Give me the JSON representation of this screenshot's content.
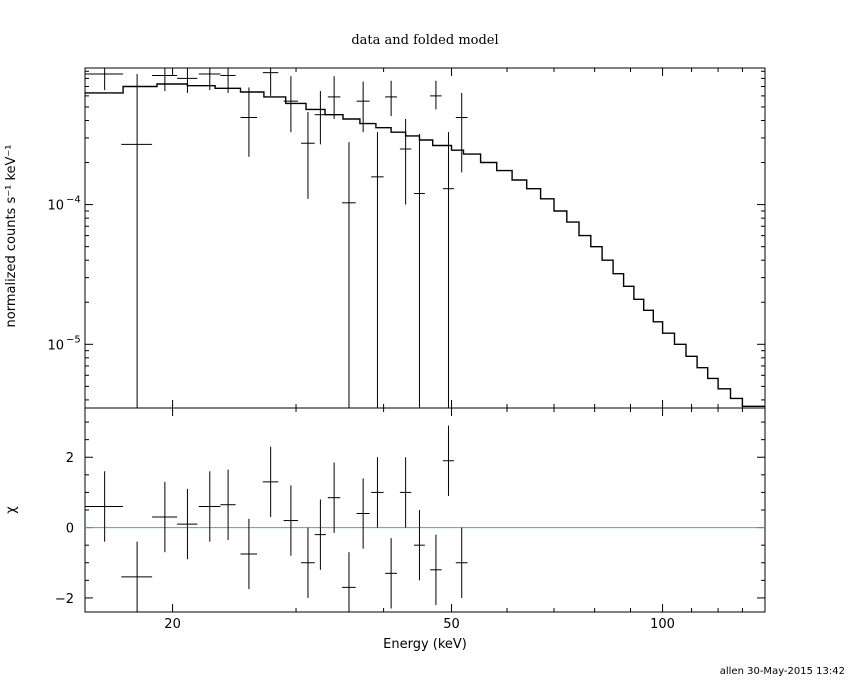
{
  "chart_data": [
    {
      "type": "scatter",
      "title": "data and folded model",
      "xlabel": "",
      "ylabel": "normalized counts s⁻¹ keV⁻¹",
      "xscale": "log",
      "yscale": "log",
      "xlim": [
        15,
        140
      ],
      "ylim": [
        3.5e-06,
        0.00095
      ],
      "ytick_labels": [
        {
          "value": 0.0001,
          "base": "10",
          "exp": "−4"
        },
        {
          "value": 1e-05,
          "base": "10",
          "exp": "−5"
        }
      ],
      "series": [
        {
          "kind": "data",
          "points": [
            {
              "x": 16.0,
              "xerr": [
                1.0,
                1.0
              ],
              "y": 0.00086,
              "ylo": 0.00066,
              "yhi": 0.00095
            },
            {
              "x": 17.8,
              "xerr": [
                0.9,
                0.9
              ],
              "y": 0.00027,
              "ylo": 3.5e-06,
              "yhi": 0.00086
            },
            {
              "x": 19.5,
              "xerr": [
                0.8,
                0.8
              ],
              "y": 0.00084,
              "ylo": 0.00065,
              "yhi": 0.00095
            },
            {
              "x": 21.0,
              "xerr": [
                0.7,
                0.7
              ],
              "y": 0.0008,
              "ylo": 0.00063,
              "yhi": 0.00095
            },
            {
              "x": 22.6,
              "xerr": [
                0.8,
                0.8
              ],
              "y": 0.00086,
              "ylo": 0.00066,
              "yhi": 0.00095
            },
            {
              "x": 24.0,
              "xerr": [
                0.6,
                0.6
              ],
              "y": 0.00084,
              "ylo": 0.00063,
              "yhi": 0.00095
            },
            {
              "x": 25.7,
              "xerr": [
                0.7,
                0.7
              ],
              "y": 0.00042,
              "ylo": 0.00022,
              "yhi": 0.00069
            },
            {
              "x": 27.6,
              "xerr": [
                0.7,
                0.7
              ],
              "y": 0.00088,
              "ylo": 0.0006,
              "yhi": 0.00095
            },
            {
              "x": 29.5,
              "xerr": [
                0.7,
                0.7
              ],
              "y": 0.00055,
              "ylo": 0.00033,
              "yhi": 0.00083
            },
            {
              "x": 31.2,
              "xerr": [
                0.7,
                0.7
              ],
              "y": 0.000275,
              "ylo": 0.00011,
              "yhi": 0.00046
            },
            {
              "x": 32.5,
              "xerr": [
                0.6,
                0.6
              ],
              "y": 0.00044,
              "ylo": 0.00027,
              "yhi": 0.00065
            },
            {
              "x": 34.0,
              "xerr": [
                0.7,
                0.7
              ],
              "y": 0.00059,
              "ylo": 0.00041,
              "yhi": 0.00083
            },
            {
              "x": 35.7,
              "xerr": [
                0.8,
                0.8
              ],
              "y": 0.000103,
              "ylo": 3.5e-06,
              "yhi": 0.00028
            },
            {
              "x": 37.4,
              "xerr": [
                0.8,
                0.8
              ],
              "y": 0.00055,
              "ylo": 0.00033,
              "yhi": 0.00076
            },
            {
              "x": 39.2,
              "xerr": [
                0.8,
                0.8
              ],
              "y": 0.000158,
              "ylo": 3.5e-06,
              "yhi": 0.00033
            },
            {
              "x": 41.0,
              "xerr": [
                0.8,
                0.8
              ],
              "y": 0.00059,
              "ylo": 0.00043,
              "yhi": 0.00077
            },
            {
              "x": 43.0,
              "xerr": [
                0.8,
                0.8
              ],
              "y": 0.00025,
              "ylo": 0.0001,
              "yhi": 0.00041
            },
            {
              "x": 45.0,
              "xerr": [
                0.8,
                0.8
              ],
              "y": 0.00012,
              "ylo": 3.5e-06,
              "yhi": 0.00032
            },
            {
              "x": 47.5,
              "xerr": [
                0.9,
                0.9
              ],
              "y": 0.0006,
              "ylo": 0.00048,
              "yhi": 0.00077
            },
            {
              "x": 49.5,
              "xerr": [
                0.9,
                0.9
              ],
              "y": 0.00013,
              "ylo": 3.5e-06,
              "yhi": 0.00033
            },
            {
              "x": 51.7,
              "xerr": [
                1.0,
                1.0
              ],
              "y": 0.00042,
              "ylo": 0.00017,
              "yhi": 0.00063
            }
          ]
        },
        {
          "kind": "model",
          "points": [
            [
              15,
              0.00063
            ],
            [
              17,
              0.0007
            ],
            [
              19,
              0.00073
            ],
            [
              21,
              0.00071
            ],
            [
              23,
              0.00068
            ],
            [
              25,
              0.00064
            ],
            [
              27,
              0.00059
            ],
            [
              29,
              0.00053
            ],
            [
              31,
              0.00048
            ],
            [
              33,
              0.00044
            ],
            [
              35,
              0.00041
            ],
            [
              37,
              0.00038
            ],
            [
              39,
              0.000355
            ],
            [
              41,
              0.00033
            ],
            [
              43,
              0.00031
            ],
            [
              45,
              0.00029
            ],
            [
              47,
              0.000265
            ],
            [
              50,
              0.000245
            ],
            [
              52,
              0.00023
            ],
            [
              55,
              0.0002
            ],
            [
              58,
              0.000175
            ],
            [
              61,
              0.00015
            ],
            [
              64,
              0.00013
            ],
            [
              67,
              0.00011
            ],
            [
              70,
              9e-05
            ],
            [
              73,
              7.5e-05
            ],
            [
              76,
              6e-05
            ],
            [
              79,
              5e-05
            ],
            [
              82,
              4e-05
            ],
            [
              85,
              3.2e-05
            ],
            [
              88,
              2.6e-05
            ],
            [
              91,
              2.1e-05
            ],
            [
              94,
              1.75e-05
            ],
            [
              97,
              1.45e-05
            ],
            [
              100,
              1.2e-05
            ],
            [
              104,
              1e-05
            ],
            [
              108,
              8.2e-06
            ],
            [
              112,
              6.8e-06
            ],
            [
              116,
              5.7e-06
            ],
            [
              120,
              4.8e-06
            ],
            [
              125,
              4.1e-06
            ],
            [
              130,
              3.6e-06
            ]
          ]
        }
      ]
    },
    {
      "type": "scatter",
      "xlabel": "Energy (keV)",
      "ylabel": "χ",
      "xscale": "log",
      "xlim": [
        15,
        140
      ],
      "ylim": [
        -2.4,
        3.4
      ],
      "xticks": [
        20,
        50,
        100
      ],
      "yticks": [
        -2,
        0,
        2
      ],
      "series": [
        {
          "kind": "residuals",
          "points": [
            {
              "x": 16.0,
              "xerr": 1.0,
              "y": 0.6,
              "yerr": 1.0
            },
            {
              "x": 17.8,
              "xerr": 0.9,
              "y": -1.4,
              "yerr": 1.0
            },
            {
              "x": 19.5,
              "xerr": 0.8,
              "y": 0.3,
              "yerr": 1.0
            },
            {
              "x": 21.0,
              "xerr": 0.7,
              "y": 0.1,
              "yerr": 1.0
            },
            {
              "x": 22.6,
              "xerr": 0.8,
              "y": 0.6,
              "yerr": 1.0
            },
            {
              "x": 24.0,
              "xerr": 0.6,
              "y": 0.65,
              "yerr": 1.0
            },
            {
              "x": 25.7,
              "xerr": 0.7,
              "y": -0.75,
              "yerr": 1.0
            },
            {
              "x": 27.6,
              "xerr": 0.7,
              "y": 1.3,
              "yerr": 1.0
            },
            {
              "x": 29.5,
              "xerr": 0.7,
              "y": 0.2,
              "yerr": 1.0
            },
            {
              "x": 31.2,
              "xerr": 0.7,
              "y": -1.0,
              "yerr": 1.0
            },
            {
              "x": 32.5,
              "xerr": 0.6,
              "y": -0.2,
              "yerr": 1.0
            },
            {
              "x": 34.0,
              "xerr": 0.7,
              "y": 0.85,
              "yerr": 1.0
            },
            {
              "x": 35.7,
              "xerr": 0.8,
              "y": -1.7,
              "yerr": 1.0
            },
            {
              "x": 37.4,
              "xerr": 0.8,
              "y": 0.4,
              "yerr": 1.0
            },
            {
              "x": 39.2,
              "xerr": 0.8,
              "y": 1.0,
              "yerr": 1.0
            },
            {
              "x": 41.0,
              "xerr": 0.8,
              "y": -1.3,
              "yerr": 1.0
            },
            {
              "x": 43.0,
              "xerr": 0.8,
              "y": 1.0,
              "yerr": 1.0
            },
            {
              "x": 45.0,
              "xerr": 0.8,
              "y": -0.5,
              "yerr": 1.0
            },
            {
              "x": 47.5,
              "xerr": 0.9,
              "y": -1.2,
              "yerr": 1.0
            },
            {
              "x": 49.5,
              "xerr": 0.9,
              "y": 1.9,
              "yerr": 1.0
            },
            {
              "x": 51.7,
              "xerr": 1.0,
              "y": -1.0,
              "yerr": 1.0
            }
          ]
        },
        {
          "kind": "zero-line",
          "y": 0,
          "color": "#33cc33"
        }
      ]
    }
  ],
  "footer": {
    "credit": "allen 30-May-2015 13:42"
  }
}
